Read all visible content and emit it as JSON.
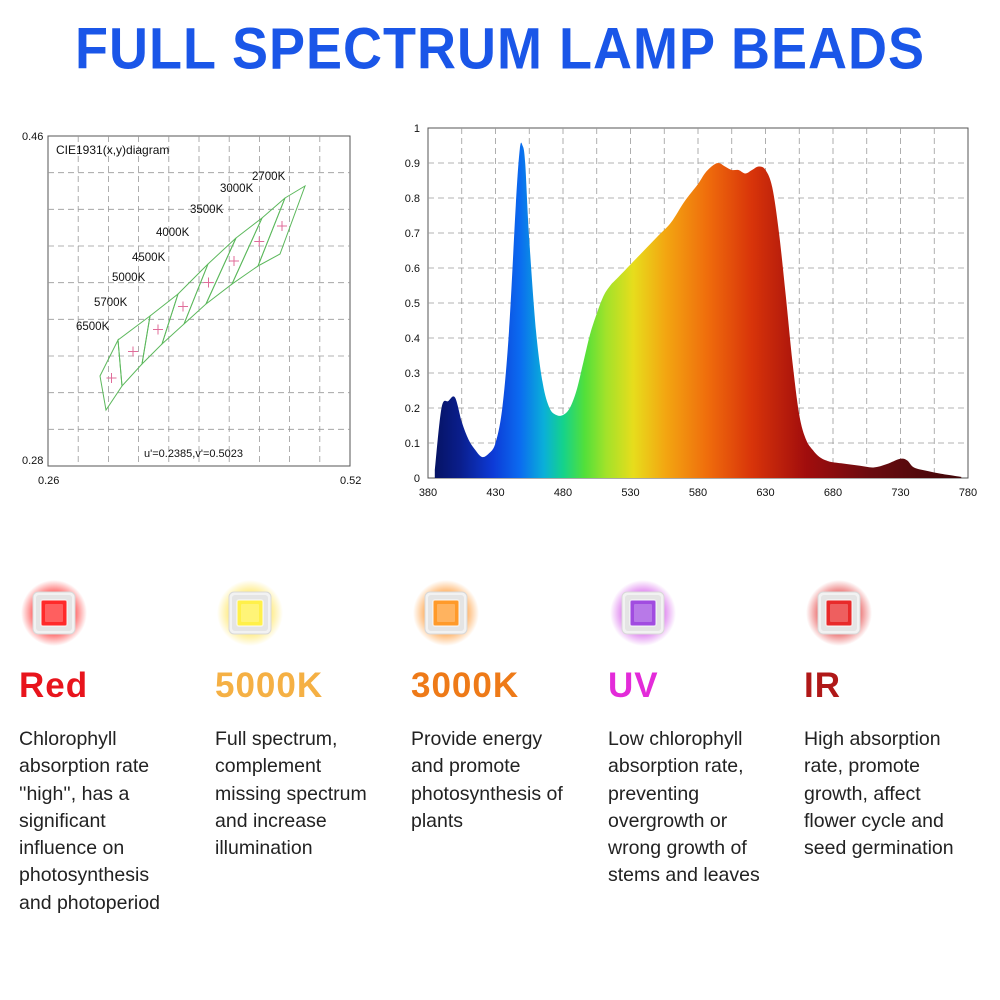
{
  "title": "FULL SPECTRUM LAMP BEADS",
  "cie": {
    "label": "CIE1931(x,y)diagram",
    "y_max": "0.46",
    "y_min": "0.28",
    "x_min": "0.26",
    "x_max": "0.52",
    "uv": "u'=0.2385,v'=0.5023",
    "cct_labels": [
      "2700K",
      "3000K",
      "3500K",
      "4000K",
      "4500K",
      "5000K",
      "5700K",
      "6500K"
    ]
  },
  "spectrum": {
    "y_ticks": [
      "0",
      "0.1",
      "0.2",
      "0.3",
      "0.4",
      "0.5",
      "0.6",
      "0.7",
      "0.8",
      "0.9",
      "1"
    ],
    "x_ticks": [
      "380",
      "430",
      "480",
      "530",
      "580",
      "630",
      "680",
      "730",
      "780"
    ]
  },
  "chart_data": {
    "type": "area",
    "title": "",
    "xlabel": "",
    "ylabel": "",
    "xlim": [
      380,
      780
    ],
    "ylim": [
      0,
      1
    ],
    "grid": true,
    "x": [
      385,
      390,
      395,
      400,
      405,
      410,
      415,
      420,
      425,
      430,
      435,
      440,
      445,
      448,
      450,
      452,
      455,
      460,
      465,
      470,
      475,
      480,
      485,
      490,
      495,
      500,
      505,
      510,
      515,
      520,
      530,
      540,
      550,
      560,
      570,
      580,
      585,
      590,
      595,
      600,
      605,
      610,
      615,
      620,
      625,
      630,
      635,
      640,
      645,
      650,
      655,
      660,
      665,
      670,
      675,
      680,
      690,
      700,
      710,
      720,
      730,
      735,
      740,
      750,
      760,
      770,
      775
    ],
    "values": [
      0.02,
      0.2,
      0.22,
      0.23,
      0.16,
      0.11,
      0.08,
      0.06,
      0.07,
      0.1,
      0.2,
      0.42,
      0.78,
      0.94,
      0.95,
      0.9,
      0.68,
      0.42,
      0.27,
      0.2,
      0.18,
      0.18,
      0.2,
      0.25,
      0.33,
      0.41,
      0.47,
      0.52,
      0.55,
      0.57,
      0.61,
      0.65,
      0.69,
      0.73,
      0.79,
      0.84,
      0.87,
      0.89,
      0.9,
      0.89,
      0.88,
      0.88,
      0.87,
      0.88,
      0.89,
      0.88,
      0.83,
      0.7,
      0.52,
      0.33,
      0.18,
      0.11,
      0.08,
      0.06,
      0.05,
      0.045,
      0.04,
      0.035,
      0.03,
      0.04,
      0.055,
      0.05,
      0.03,
      0.02,
      0.012,
      0.006,
      0.003
    ]
  },
  "beads": [
    {
      "title": "Red",
      "color": "#e8141c",
      "chip": "#ff2a2a",
      "glow": "#ff1a1a",
      "desc": "Chlorophyll\nabsorption rate\n''high'', has a\nsignificant\ninfluence on\nphotosynthesis\nand photoperiod"
    },
    {
      "title": "5000K",
      "color": "#f5b044",
      "chip": "#fff04a",
      "glow": "#ffe24a",
      "desc": "Full spectrum,\ncomplement\nmissing spectrum\nand increase\nillumination"
    },
    {
      "title": "3000K",
      "color": "#ee7a18",
      "chip": "#ff9a2a",
      "glow": "#ff8c1a",
      "desc": "Provide energy\nand promote\nphotosynthesis of\nplants"
    },
    {
      "title": "UV",
      "color": "#e32bd9",
      "chip": "#a14ce0",
      "glow": "#d04ce8",
      "desc": "Low chlorophyll\nabsorption rate,\npreventing\novergrowth or\nwrong growth of\nstems and leaves"
    },
    {
      "title": "IR",
      "color": "#b01818",
      "chip": "#e82a2a",
      "glow": "#e23030",
      "desc": "High absorption\nrate, promote\ngrowth, affect\nflower cycle and\nseed germination"
    }
  ]
}
